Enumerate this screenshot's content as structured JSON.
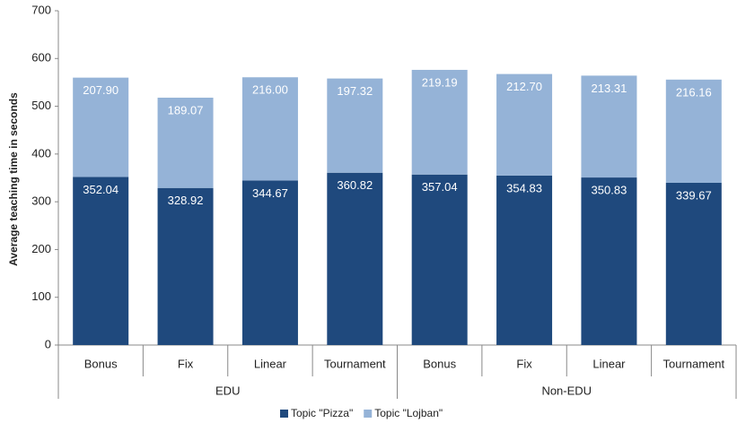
{
  "chart_data": {
    "type": "stacked-bar",
    "y_label": "Average teaching time in seconds",
    "groups": [
      {
        "name": "EDU",
        "categories": [
          "Bonus",
          "Fix",
          "Linear",
          "Tournament"
        ]
      },
      {
        "name": "Non-EDU",
        "categories": [
          "Bonus",
          "Fix",
          "Linear",
          "Tournament"
        ]
      }
    ],
    "series": [
      {
        "name": "Topic \"Pizza\"",
        "color": "#1f497d",
        "values": [
          352.04,
          328.92,
          344.67,
          360.82,
          357.04,
          354.83,
          350.83,
          339.67
        ]
      },
      {
        "name": "Topic \"Lojban\"",
        "color": "#95b3d7",
        "values": [
          207.9,
          189.07,
          216,
          197.32,
          219.19,
          212.7,
          213.31,
          216.16
        ],
        "value_labels": [
          "207.90",
          "189.07",
          "216.00",
          "197.32",
          "219.19",
          "212.70",
          "213.31",
          "216.16"
        ]
      }
    ],
    "ylim": [
      0,
      700
    ],
    "yticks": [
      0,
      100,
      200,
      300,
      400,
      500,
      600,
      700
    ],
    "legend": "bottom"
  }
}
